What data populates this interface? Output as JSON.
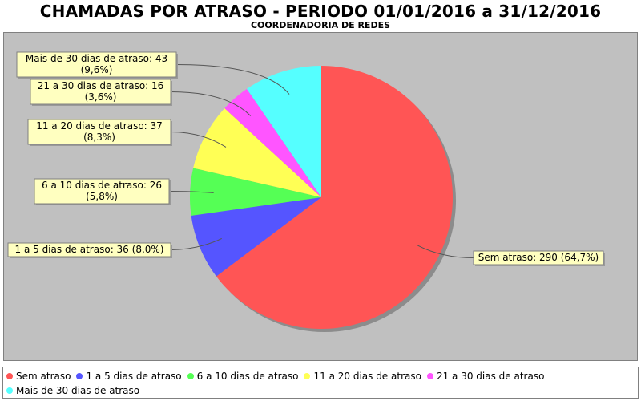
{
  "chart_data": {
    "type": "pie",
    "title": "CHAMADAS POR ATRASO - PERIODO 01/01/2016 a 31/12/2016",
    "subtitle": "COORDENADORIA DE REDES",
    "slices": [
      {
        "name": "Sem atraso",
        "value": 290,
        "percent": "64,7%",
        "label": [
          "Sem atraso: 290 (64,7%)"
        ],
        "color": "#ff5555"
      },
      {
        "name": "1 a 5 dias de atraso",
        "value": 36,
        "percent": "8,0%",
        "label": [
          "1 a 5 dias de atraso: 36 (8,0%)"
        ],
        "color": "#5555ff"
      },
      {
        "name": "6 a 10 dias de atraso",
        "value": 26,
        "percent": "5,8%",
        "label": [
          "6 a 10 dias de atraso: 26",
          "(5,8%)"
        ],
        "color": "#55ff55"
      },
      {
        "name": "11 a 20 dias de atraso",
        "value": 37,
        "percent": "8,3%",
        "label": [
          "11 a 20 dias de atraso: 37",
          "(8,3%)"
        ],
        "color": "#ffff55"
      },
      {
        "name": "21 a 30 dias de atraso",
        "value": 16,
        "percent": "3,6%",
        "label": [
          "21 a 30 dias de atraso: 16",
          "(3,6%)"
        ],
        "color": "#ff55ff"
      },
      {
        "name": "Mais de 30 dias de atraso",
        "value": 43,
        "percent": "9,6%",
        "label": [
          "Mais de 30 dias de atraso: 43",
          "(9,6%)"
        ],
        "color": "#55ffff"
      }
    ],
    "legend_position": "bottom",
    "start_angle": "12 o'clock",
    "direction": "clockwise"
  }
}
